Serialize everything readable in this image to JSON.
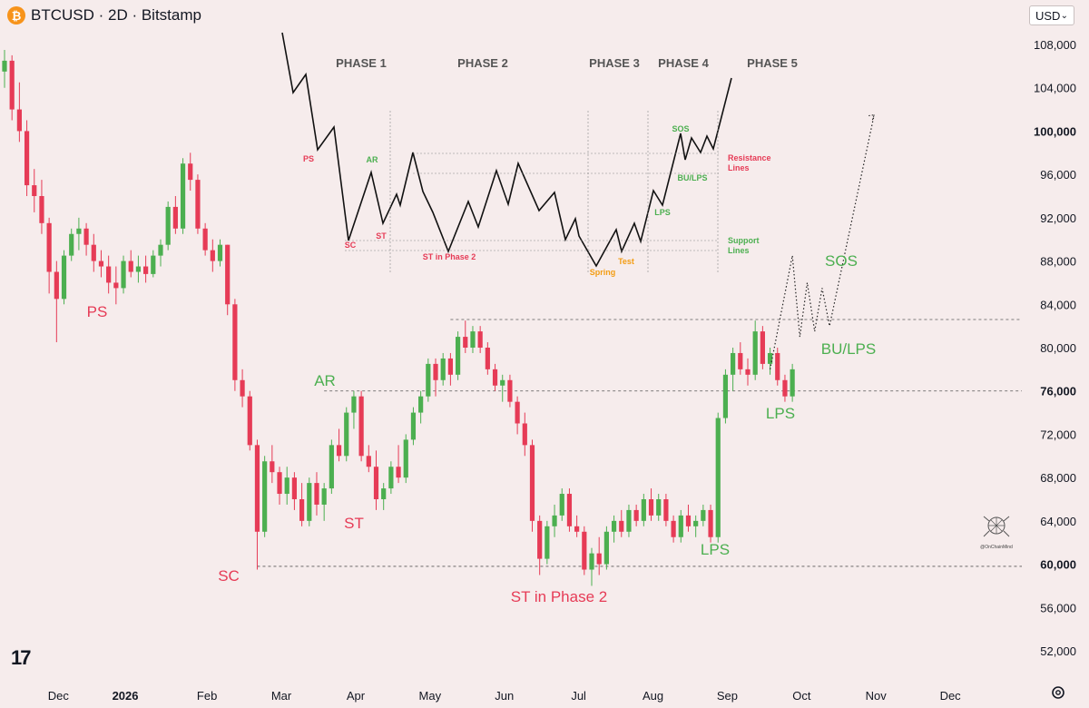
{
  "header": {
    "title": "BTCUSD · 2D · Bitstamp",
    "coin_symbol": "₿",
    "currency_button": "USD",
    "currency_chevron": "⌄"
  },
  "footer": {
    "logo_text": "17",
    "signature": "@OnChainMind",
    "icons": [
      "tradingview-logo-icon",
      "settings-gear-icon",
      "btc-coin-icon"
    ]
  },
  "colors": {
    "background": "#f6ecec",
    "up": "#4caf50",
    "down": "#e63b56",
    "label_red": "#e63b56",
    "label_green": "#4caf50",
    "schematic_line": "#111111",
    "schematic_orange": "#f39c12",
    "axis_text": "#131722"
  },
  "chart_data": [
    {
      "type": "candlestick",
      "title": "",
      "ylim": [
        49000,
        110000
      ],
      "y_ticks": [
        "108,000",
        "104,000",
        "100,000",
        "96,000",
        "92,000",
        "88,000",
        "84,000",
        "80,000",
        "76,000",
        "72,000",
        "68,000",
        "64,000",
        "60,000",
        "56,000",
        "52,000"
      ],
      "x_ticks": [
        "Dec",
        "2026",
        "Feb",
        "Mar",
        "Apr",
        "May",
        "Jun",
        "Jul",
        "Aug",
        "Sep",
        "Oct",
        "Nov",
        "Dec"
      ],
      "x_tick_index": [
        7,
        16,
        27,
        37,
        47,
        57,
        67,
        77,
        87,
        97,
        107,
        117,
        127
      ],
      "candles": [
        [
          105500,
          107500,
          104000,
          106500
        ],
        [
          106500,
          107000,
          101000,
          102000
        ],
        [
          102000,
          104500,
          99000,
          100000
        ],
        [
          100000,
          101000,
          94000,
          95000
        ],
        [
          95000,
          96500,
          92500,
          94000
        ],
        [
          94000,
          95500,
          90500,
          91500
        ],
        [
          91500,
          92000,
          85000,
          87000
        ],
        [
          87000,
          88000,
          80500,
          84500
        ],
        [
          84500,
          89000,
          84000,
          88500
        ],
        [
          88500,
          91000,
          88000,
          90500
        ],
        [
          90500,
          92000,
          89000,
          91000
        ],
        [
          91000,
          91500,
          88500,
          89500
        ],
        [
          89500,
          90500,
          87000,
          88000
        ],
        [
          88000,
          89000,
          86500,
          87500
        ],
        [
          87500,
          88500,
          85000,
          86000
        ],
        [
          86000,
          87500,
          84000,
          85500
        ],
        [
          85500,
          88500,
          85000,
          88000
        ],
        [
          88000,
          89000,
          86500,
          87000
        ],
        [
          87000,
          88500,
          86000,
          87500
        ],
        [
          87500,
          88500,
          86000,
          86800
        ],
        [
          86800,
          89000,
          86500,
          88500
        ],
        [
          88500,
          90000,
          87500,
          89500
        ],
        [
          89500,
          93500,
          89000,
          93000
        ],
        [
          93000,
          94000,
          90500,
          91000
        ],
        [
          91000,
          97500,
          90500,
          97000
        ],
        [
          97000,
          98000,
          94500,
          95500
        ],
        [
          95500,
          96000,
          90500,
          91000
        ],
        [
          91000,
          91500,
          88500,
          89000
        ],
        [
          89000,
          90000,
          87000,
          88000
        ],
        [
          88000,
          90000,
          87500,
          89500
        ],
        [
          89500,
          89500,
          83000,
          84000
        ],
        [
          84000,
          84500,
          76000,
          77000
        ],
        [
          77000,
          78000,
          74500,
          75500
        ],
        [
          75500,
          76000,
          70500,
          71000
        ],
        [
          71000,
          71500,
          59500,
          63000
        ],
        [
          63000,
          70000,
          62500,
          69500
        ],
        [
          69500,
          71000,
          67500,
          68500
        ],
        [
          68500,
          69000,
          65500,
          66500
        ],
        [
          66500,
          69000,
          65500,
          68000
        ],
        [
          68000,
          68500,
          65000,
          66000
        ],
        [
          66000,
          67500,
          63500,
          64000
        ],
        [
          64000,
          68000,
          63500,
          67500
        ],
        [
          67500,
          68500,
          64500,
          65500
        ],
        [
          65500,
          67500,
          64000,
          67000
        ],
        [
          67000,
          71500,
          66500,
          71000
        ],
        [
          71000,
          72500,
          69500,
          70000
        ],
        [
          70000,
          74500,
          69500,
          74000
        ],
        [
          74000,
          76000,
          72500,
          75500
        ],
        [
          75500,
          76000,
          69500,
          70000
        ],
        [
          70000,
          71000,
          68500,
          69000
        ],
        [
          69000,
          70500,
          65000,
          66000
        ],
        [
          66000,
          67500,
          65000,
          67000
        ],
        [
          67000,
          69500,
          66500,
          69000
        ],
        [
          69000,
          71000,
          67500,
          68000
        ],
        [
          68000,
          72000,
          67500,
          71500
        ],
        [
          71500,
          74500,
          71000,
          74000
        ],
        [
          74000,
          76000,
          73000,
          75500
        ],
        [
          75500,
          79000,
          75000,
          78500
        ],
        [
          78500,
          79000,
          75500,
          77000
        ],
        [
          77000,
          79500,
          76500,
          79000
        ],
        [
          79000,
          79500,
          76500,
          77500
        ],
        [
          77500,
          81500,
          77000,
          81000
        ],
        [
          81000,
          82500,
          79500,
          80000
        ],
        [
          80000,
          82000,
          79500,
          81500
        ],
        [
          81500,
          82000,
          79500,
          80000
        ],
        [
          80000,
          80500,
          77500,
          78000
        ],
        [
          78000,
          78500,
          76000,
          76500
        ],
        [
          76500,
          77500,
          75000,
          77000
        ],
        [
          77000,
          77500,
          74500,
          75000
        ],
        [
          75000,
          75500,
          72000,
          73000
        ],
        [
          73000,
          74000,
          70000,
          71000
        ],
        [
          71000,
          71500,
          63000,
          64000
        ],
        [
          64000,
          64500,
          59000,
          60500
        ],
        [
          60500,
          64000,
          60000,
          63500
        ],
        [
          63500,
          65500,
          62500,
          64500
        ],
        [
          64500,
          67000,
          64000,
          66500
        ],
        [
          66500,
          67000,
          63000,
          63500
        ],
        [
          63500,
          64500,
          62500,
          63000
        ],
        [
          63000,
          63500,
          59000,
          59500
        ],
        [
          59500,
          61500,
          58000,
          61000
        ],
        [
          61000,
          62500,
          59000,
          60000
        ],
        [
          60000,
          63500,
          59500,
          63000
        ],
        [
          63000,
          64500,
          62000,
          64000
        ],
        [
          64000,
          65000,
          62500,
          63000
        ],
        [
          63000,
          65500,
          62500,
          65000
        ],
        [
          65000,
          65500,
          63500,
          64000
        ],
        [
          64000,
          66500,
          63500,
          66000
        ],
        [
          66000,
          67000,
          64000,
          64500
        ],
        [
          64500,
          66500,
          64000,
          66000
        ],
        [
          66000,
          66500,
          63500,
          64000
        ],
        [
          64000,
          64500,
          62000,
          62500
        ],
        [
          62500,
          65000,
          62000,
          64500
        ],
        [
          64500,
          65500,
          63000,
          63500
        ],
        [
          63500,
          64500,
          62500,
          64000
        ],
        [
          64000,
          65500,
          63500,
          65000
        ],
        [
          65000,
          65500,
          62000,
          62500
        ],
        [
          62500,
          74000,
          62000,
          73500
        ],
        [
          73500,
          78000,
          73000,
          77500
        ],
        [
          77500,
          80000,
          76000,
          79500
        ],
        [
          79500,
          80500,
          77500,
          78000
        ],
        [
          78000,
          79000,
          76500,
          77500
        ],
        [
          77500,
          82500,
          77000,
          81500
        ],
        [
          81500,
          82000,
          78000,
          78500
        ],
        [
          78500,
          80000,
          77500,
          79500
        ],
        [
          79500,
          80000,
          76500,
          77000
        ],
        [
          77000,
          77500,
          75000,
          75500
        ],
        [
          75500,
          78500,
          75000,
          78000
        ]
      ]
    },
    {
      "type": "line",
      "title": "Projected path",
      "series": [
        {
          "name": "projection",
          "style": "dotted",
          "points": [
            [
              103,
              78000
            ],
            [
              106,
              88500
            ],
            [
              107,
              81000
            ],
            [
              108,
              86000
            ],
            [
              109,
              81500
            ],
            [
              110,
              85500
            ],
            [
              111,
              82000
            ],
            [
              117,
              101500
            ]
          ]
        }
      ]
    },
    {
      "type": "line",
      "title": "Wyckoff accumulation schematic",
      "phases": [
        "PHASE 1",
        "PHASE 2",
        "PHASE 3",
        "PHASE 4",
        "PHASE 5"
      ],
      "labels_red": [
        "PS",
        "SC",
        "ST",
        "ST in Phase 2",
        "Resistance Lines"
      ],
      "labels_green": [
        "AR",
        "LPS",
        "SOS",
        "BU/LPS",
        "Support Lines"
      ],
      "labels_orange": [
        "Spring",
        "Test"
      ]
    }
  ],
  "annotations": {
    "ps": "PS",
    "sc": "SC",
    "ar": "AR",
    "st": "ST",
    "st_phase2": "ST in Phase 2",
    "lps_aug": "LPS",
    "lps_sep": "LPS",
    "sos": "SOS",
    "bu_lps": "BU/LPS"
  },
  "schematic": {
    "phase1": "PHASE 1",
    "phase2": "PHASE 2",
    "phase3": "PHASE 3",
    "phase4": "PHASE 4",
    "phase5": "PHASE 5",
    "ps": "PS",
    "sc": "SC",
    "ar": "AR",
    "st": "ST",
    "st_phase2": "ST in Phase 2",
    "spring": "Spring",
    "test": "Test",
    "lps": "LPS",
    "sos": "SOS",
    "bu_lps": "BU/LPS",
    "resistance1": "Resistance",
    "resistance2": "Lines",
    "support1": "Support",
    "support2": "Lines"
  }
}
